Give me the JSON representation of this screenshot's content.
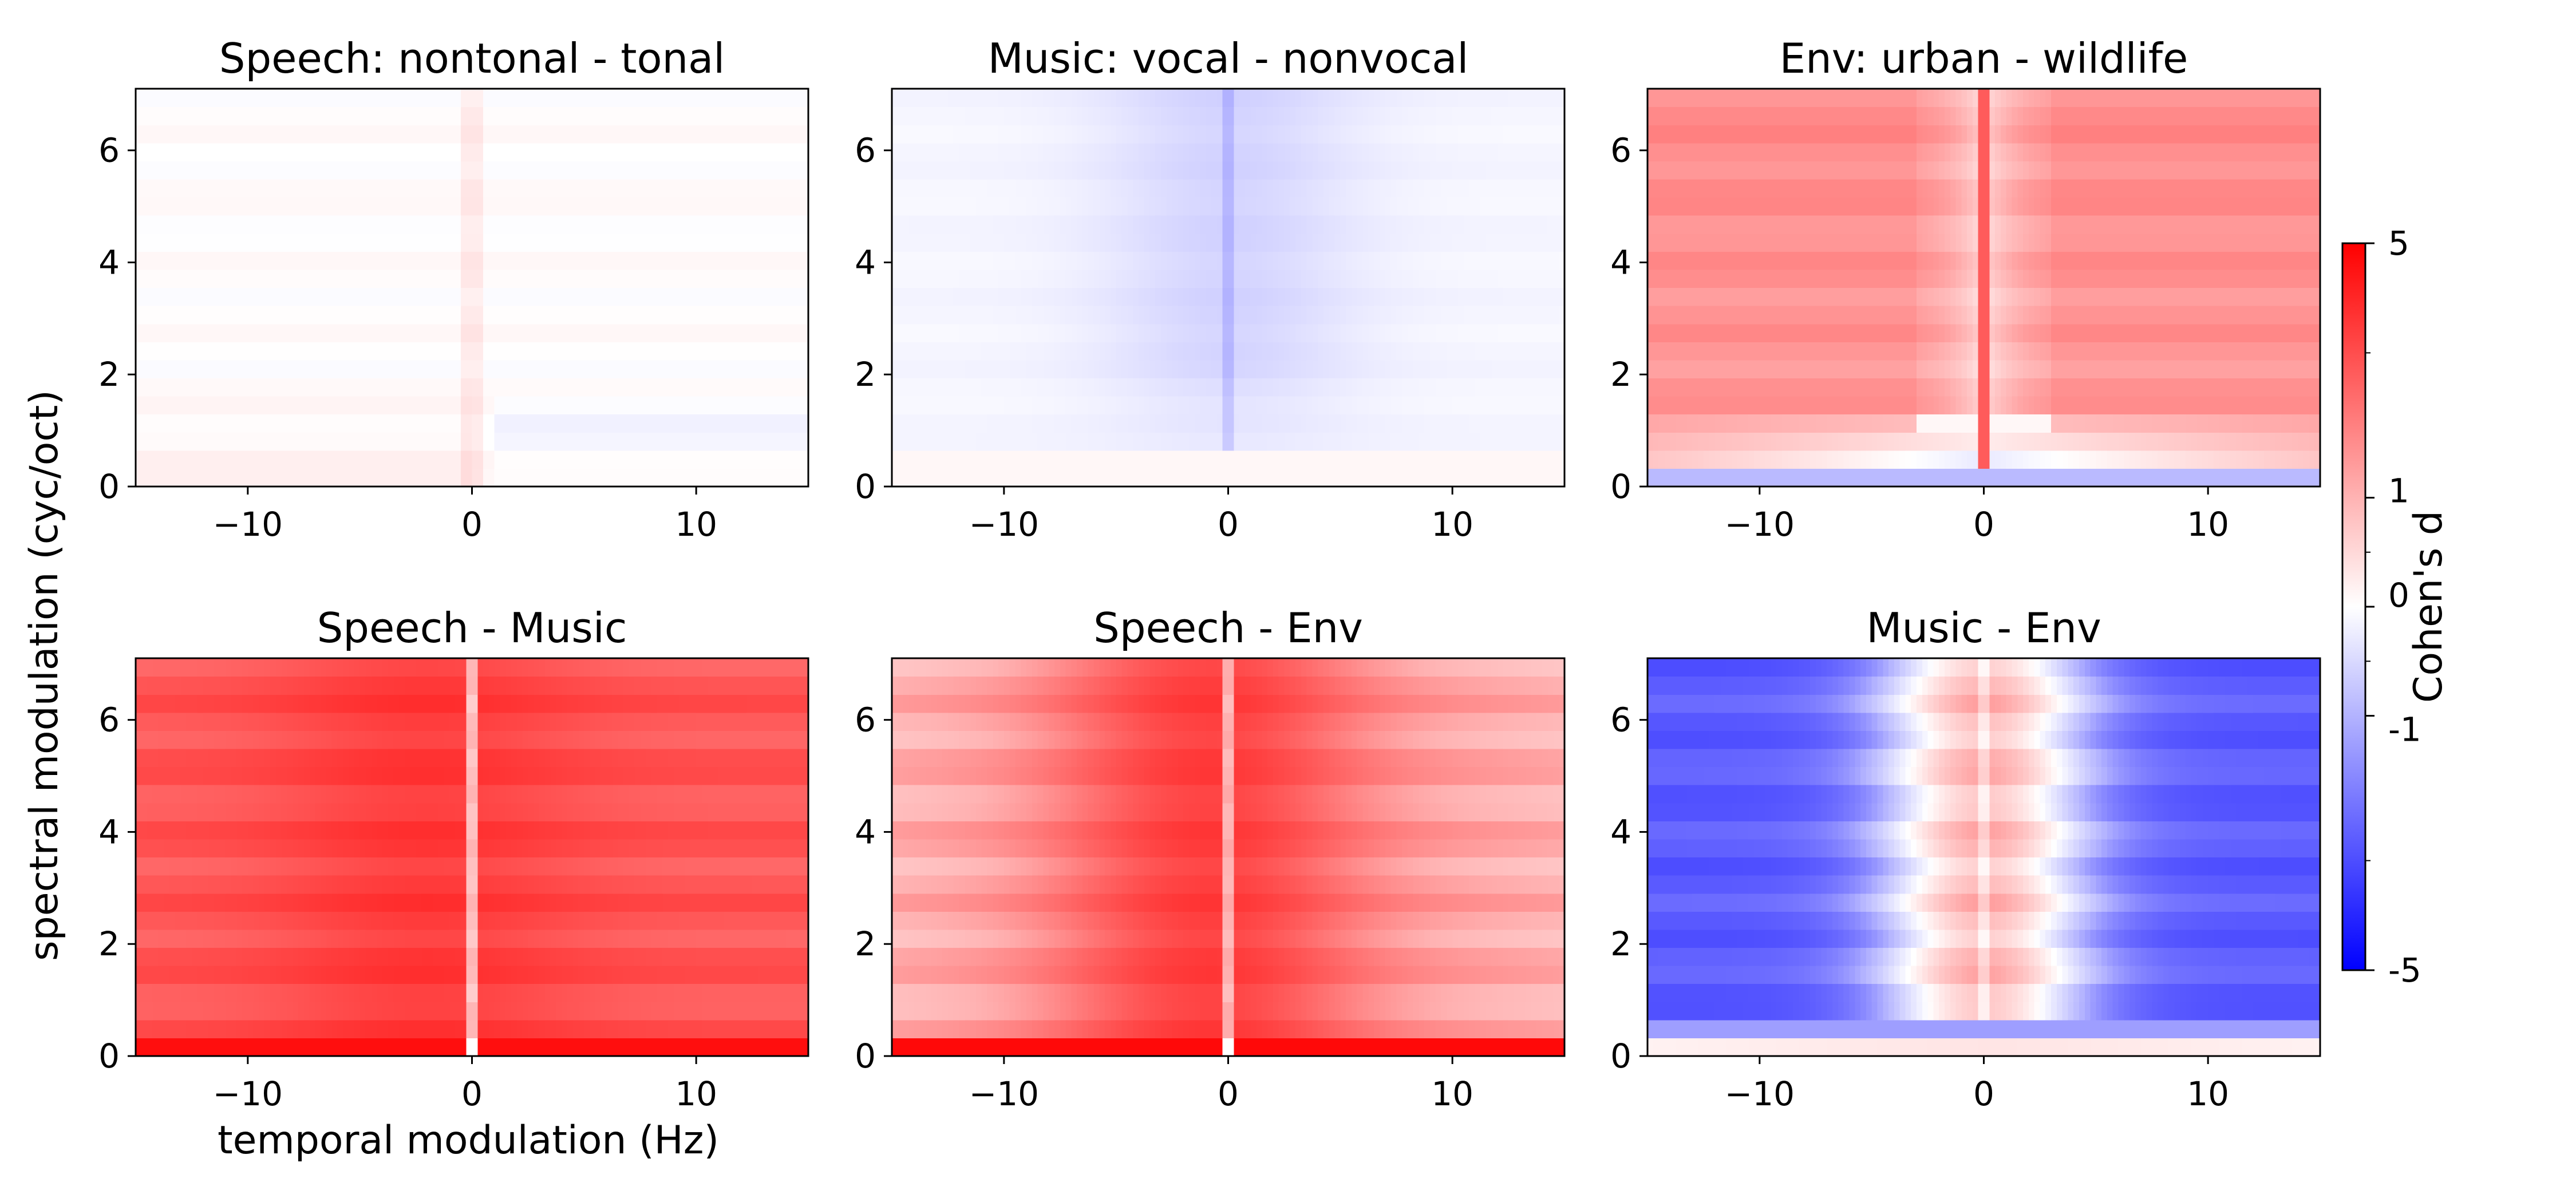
{
  "figure": {
    "ylabel": "spectral modulation (cyc/oct)",
    "xlabel": "temporal modulation (Hz)"
  },
  "chart_data": [
    {
      "type": "heatmap",
      "title": "Speech: nontonal - tonal",
      "x_ticks": [
        -10,
        0,
        10
      ],
      "y_ticks": [
        0,
        2,
        4,
        6
      ],
      "x_range": [
        -15,
        15
      ],
      "y_range": [
        0,
        7.1
      ],
      "pattern": {
        "base": 0.03,
        "center_line": 0.25,
        "center_width": 0.6,
        "low_band": 0.15,
        "low_band_top": 2.0,
        "right_low_blue": -0.2,
        "stripe_amp": 0.08
      }
    },
    {
      "type": "heatmap",
      "title": "Music: vocal - nonvocal",
      "x_ticks": [
        -10,
        0,
        10
      ],
      "y_ticks": [
        0,
        2,
        4,
        6
      ],
      "x_range": [
        -15,
        15
      ],
      "y_range": [
        0,
        7.1
      ],
      "pattern": {
        "base": -0.12,
        "center_dip": -0.45,
        "center_width": 4.0,
        "center_line": -0.4,
        "bottom_row": 0.1,
        "stripe_amp": 0.04
      }
    },
    {
      "type": "heatmap",
      "title": "Env: urban - wildlife",
      "x_ticks": [
        -10,
        0,
        10
      ],
      "y_ticks": [
        0,
        2,
        4,
        6
      ],
      "x_range": [
        -15,
        15
      ],
      "y_range": [
        0,
        7.1
      ],
      "pattern": {
        "base": 1.25,
        "center_line": 2.2,
        "center_bright": 0.9,
        "low_blue": -1.1,
        "low_top": 1.4,
        "stripe_amp": 0.15
      }
    },
    {
      "type": "heatmap",
      "title": "Speech - Music",
      "x_ticks": [
        -10,
        0,
        10
      ],
      "y_ticks": [
        0,
        2,
        4,
        6
      ],
      "x_range": [
        -15,
        15
      ],
      "y_range": [
        0,
        7.1
      ],
      "pattern": {
        "base": 2.3,
        "peak": 3.0,
        "center_line": 0.6,
        "bottom_row": 4.4,
        "stripe_amp": 0.35
      }
    },
    {
      "type": "heatmap",
      "title": "Speech - Env",
      "x_ticks": [
        -10,
        0,
        10
      ],
      "y_ticks": [
        0,
        2,
        4,
        6
      ],
      "x_range": [
        -15,
        15
      ],
      "y_range": [
        0,
        7.1
      ],
      "pattern": {
        "base": 1.4,
        "peak": 2.9,
        "center_line": 0.8,
        "bottom_row": 4.6,
        "stripe_amp": 0.25
      }
    },
    {
      "type": "heatmap",
      "title": "Music - Env",
      "x_ticks": [
        -10,
        0,
        10
      ],
      "y_ticks": [
        0,
        2,
        4,
        6
      ],
      "x_range": [
        -15,
        15
      ],
      "y_range": [
        0,
        7.1
      ],
      "pattern": {
        "base": -2.2,
        "center_peak": 0.9,
        "center_width": 3.5,
        "bottom_row": 0.35,
        "stripe_amp": 0.3
      }
    }
  ],
  "colorbar": {
    "label": "Cohen's d",
    "ticks": [
      {
        "value": 5,
        "label": "5"
      },
      {
        "value": 1,
        "label": "1"
      },
      {
        "value": 0,
        "label": "0"
      },
      {
        "value": -1,
        "label": "-1"
      },
      {
        "value": -5,
        "label": "-5"
      }
    ],
    "minor_ticks": [
      2.5,
      0.5,
      -0.5,
      -2.5
    ],
    "range": [
      -5,
      5
    ],
    "low_color": "#0000ff",
    "mid_color": "#ffffff",
    "high_color": "#ff0000"
  }
}
